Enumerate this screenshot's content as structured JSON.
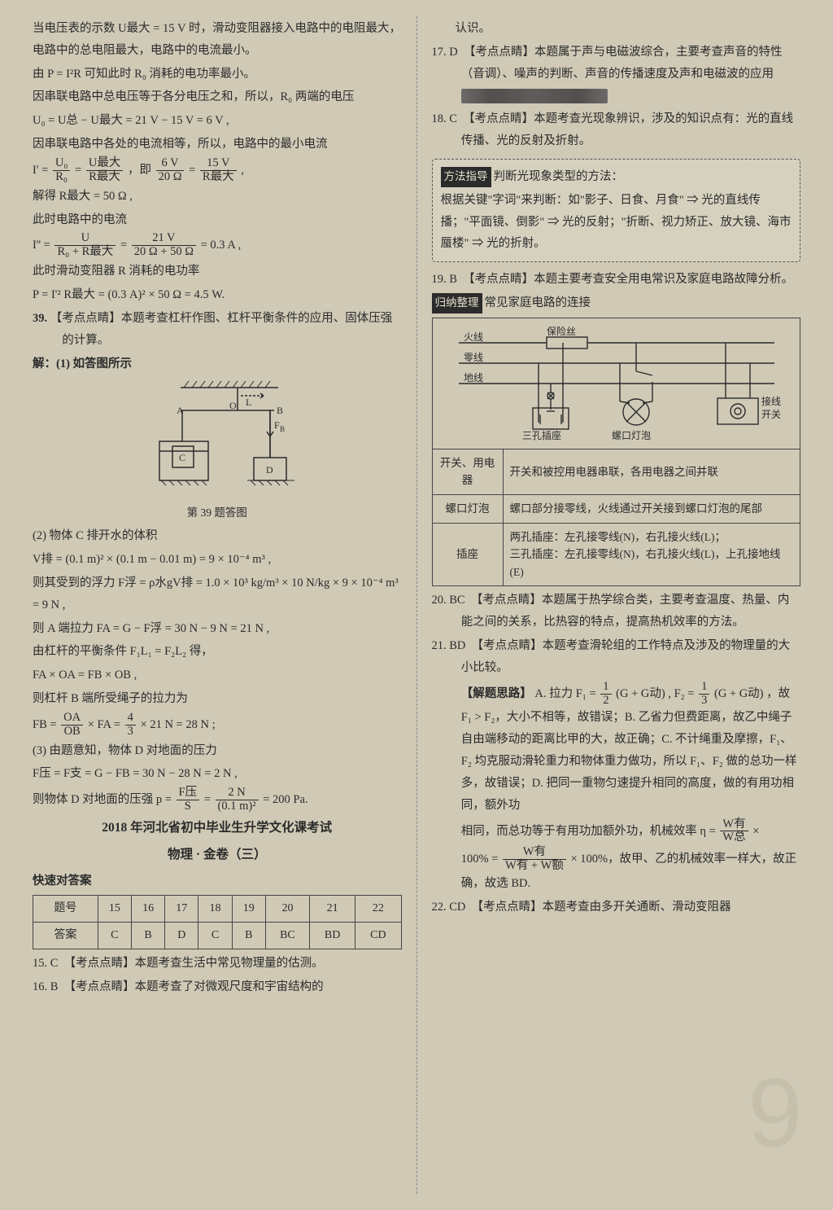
{
  "left": {
    "t0": "当电压表的示数 U最大 = 15 V 时，滑动变阻器接入电路中的电阻最大，电路中的总电阻最大，电路中的电流最小。",
    "t1": "由 P = I²R 可知此时 R₀ 消耗的电功率最小。",
    "t2": "因串联电路中总电压等于各分电压之和，所以，R₀ 两端的电压",
    "t3": "U₀ = U总 − U最大 = 21 V − 15 V = 6 V ,",
    "t4": "因串联电路中各处的电流相等，所以，电路中的最小电流",
    "t5_l": "I' = ",
    "t5a_n": "U₀",
    "t5a_d": "R₀",
    "t5_m": " = ",
    "t5b_n": "U最大",
    "t5b_d": "R最大",
    "t5_m2": " ，即 ",
    "t5c_n": "6 V",
    "t5c_d": "20 Ω",
    "t5_m3": " = ",
    "t5d_n": "15 V",
    "t5d_d": "R最大",
    "t5_t": " ,",
    "t6": "解得 R最大 = 50 Ω ,",
    "t7": "此时电路中的电流",
    "t8_l": "I'' = ",
    "t8a_n": "U",
    "t8a_d": "R₀ + R最大",
    "t8_m": " = ",
    "t8b_n": "21 V",
    "t8b_d": "20 Ω + 50 Ω",
    "t8_t": " = 0.3 A ,",
    "t9": "此时滑动变阻器 R 消耗的电功率",
    "t10": "P = I'² R最大 = (0.3 A)² × 50 Ω = 4.5 W.",
    "q39": "39. ",
    "q39t": "【考点点睛】本题考查杠杆作图、杠杆平衡条件的应用、固体压强的计算。",
    "q39a": "解：(1) 如答图所示",
    "figcap": "第 39 题答图",
    "q39b": "(2) 物体 C 排开水的体积",
    "v1": "V排 = (0.1 m)² × (0.1 m − 0.01 m) = 9 × 10⁻⁴ m³ ,",
    "v2": "则其受到的浮力 F浮 = ρ水gV排 = 1.0 × 10³ kg/m³ × 10 N/kg × 9 × 10⁻⁴ m³ = 9 N ,",
    "v3": "则 A 端拉力 FA = G − F浮 = 30 N − 9 N = 21 N ,",
    "v4": "由杠杆的平衡条件 F₁L₁ = F₂L₂ 得，",
    "v5": "FA × OA = FB × OB ,",
    "v6": "则杠杆 B 端所受绳子的拉力为",
    "v7_l": "FB = ",
    "v7a_n": "OA",
    "v7a_d": "OB",
    "v7_m": " × FA = ",
    "v7b_n": "4",
    "v7b_d": "3",
    "v7_t": " × 21 N = 28 N ;",
    "q39c": "(3) 由题意知，物体 D 对地面的压力",
    "v8": "F压 = F支 = G − FB = 30 N − 28 N = 2 N ,",
    "v9_l": "则物体 D 对地面的压强 p = ",
    "v9a_n": "F压",
    "v9a_d": "S",
    "v9_m": " = ",
    "v9b_n": "2 N",
    "v9b_d": "(0.1 m)²",
    "v9_t": " = 200 Pa.",
    "title1": "2018 年河北省初中毕业生升学文化课考试",
    "title2": "物理 · 金卷（三）",
    "quick": "快速对答案",
    "headers": [
      "题号",
      "15",
      "16",
      "17",
      "18",
      "19",
      "20",
      "21",
      "22"
    ],
    "answers": [
      "答案",
      "C",
      "B",
      "D",
      "C",
      "B",
      "BC",
      "BD",
      "CD"
    ],
    "q15": "15. C　【考点点睛】本题考查生活中常见物理量的估测。",
    "q16": "16. B　【考点点睛】本题考查了对微观尺度和宇宙结构的"
  },
  "right": {
    "cont": "认识。",
    "q17": "17. D　【考点点睛】本题属于声与电磁波综合，主要考查声音的特性（音调）、噪声的判断、声音的传播速度及声和电磁波的应用",
    "q18": "18. C　【考点点睛】本题考查光现象辨识，涉及的知识点有：光的直线传播、光的反射及折射。",
    "method_tag": "方法指导",
    "method_title": "判断光现象类型的方法：",
    "method_body": "根据关键\"字词\"来判断：如\"影子、日食、月食\" ⇒ 光的直线传播；\"平面镜、倒影\" ⇒ 光的反射；\"折断、视力矫正、放大镜、海市蜃楼\" ⇒ 光的折射。",
    "q19": "19. B　【考点点睛】本题主要考查安全用电常识及家庭电路故障分析。",
    "sum_tag": "归纳整理",
    "sum_title": "常见家庭电路的连接",
    "labels": {
      "fire": "火线",
      "neutral": "零线",
      "earth": "地线",
      "fuse": "保险丝",
      "socket": "三孔插座",
      "bulb": "螺口灯泡",
      "switch": "接线开关"
    },
    "row1k": "开关、用电器",
    "row1v": "开关和被控用电器串联，各用电器之间并联",
    "row2k": "螺口灯泡",
    "row2v": "螺口部分接零线，火线通过开关接到螺口灯泡的尾部",
    "row3k": "插座",
    "row3v": "两孔插座：左孔接零线(N)，右孔接火线(L)；\n三孔插座：左孔接零线(N)，右孔接火线(L)，上孔接地线(E)",
    "q20": "20. BC　【考点点睛】本题属于热学综合类，主要考查温度、热量、内能之间的关系，比热容的特点，提高热机效率的方法。",
    "q21": "21. BD　【考点点睛】本题考查滑轮组的工作特点及涉及的物理量的大小比较。",
    "sol": "【解题思路】",
    "s1_a": "A. 拉力 F₁ = ",
    "s1_b": "(G + G动)",
    "s1_c": " , F₂ = ",
    "s1_d": "(G + G动)",
    "s2": "，故 F₁ > F₂，大小不相等，故错误；B. 乙省力但费距离，故乙中绳子自由端移动的距离比甲的大，故正确；C. 不计绳重及摩擦，F₁、F₂ 均克服动滑轮重力和物体重力做功，所以 F₁、F₂ 做的总功一样多，故错误；D. 把同一重物匀速提升相同的高度，做的有用功相同，额外功",
    "s3_a": "相同，而总功等于有用功加额外功，机械效率 η = ",
    "s3_n": "W有",
    "s3_d": "W总",
    "s3_t": " ×",
    "s4_a": "100% = ",
    "s4_n": "W有",
    "s4_d": "W有 + W额",
    "s4_t": " × 100%，故甲、乙的机械效率一样大，故正确，故选 BD.",
    "q22": "22. CD　【考点点睛】本题考查由多开关通断、滑动变阻器"
  }
}
